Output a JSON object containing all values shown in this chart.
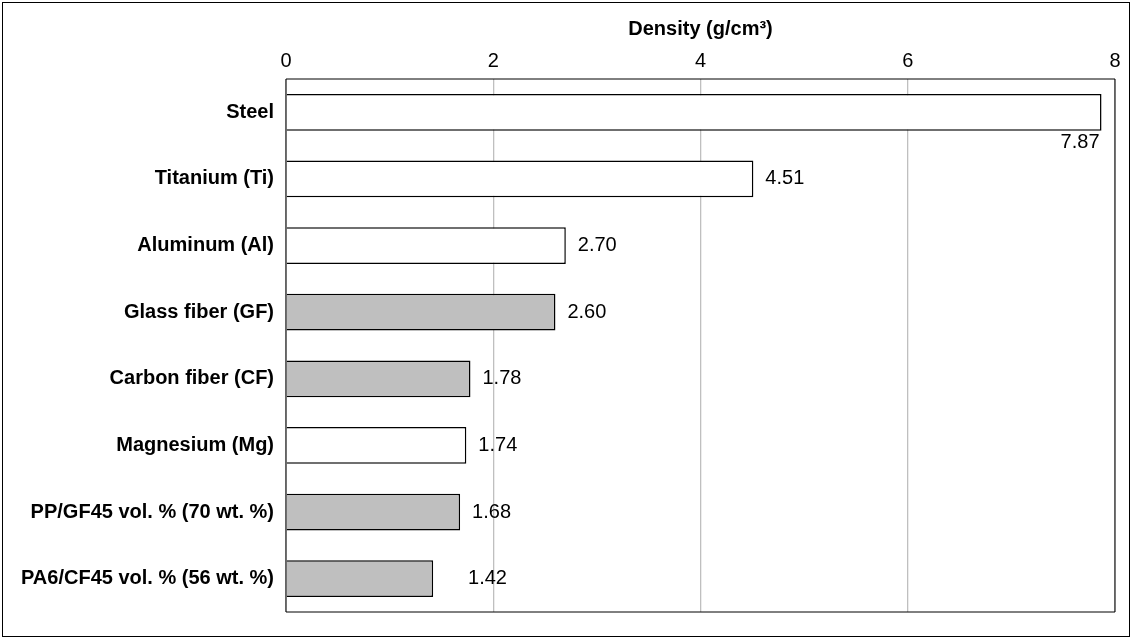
{
  "chart_data": {
    "type": "bar",
    "orientation": "horizontal",
    "xlabel": "Density (g/cm³)",
    "categories": [
      "Steel",
      "Titanium (Ti)",
      "Aluminum (Al)",
      "Glass fiber (GF)",
      "Carbon fiber (CF)",
      "Magnesium (Mg)",
      "PP/GF45 vol. % (70 wt. %)",
      "PA6/CF45 vol. % (56 wt. %)"
    ],
    "values": [
      7.87,
      4.51,
      2.7,
      2.6,
      1.78,
      1.74,
      1.68,
      1.42
    ],
    "colors": [
      "#ffffff",
      "#ffffff",
      "#ffffff",
      "#bfbfbf",
      "#bfbfbf",
      "#ffffff",
      "#bfbfbf",
      "#bfbfbf"
    ],
    "value_labels": [
      "7.87",
      "4.51",
      "2.70",
      "2.60",
      "1.78",
      "1.74",
      "1.68",
      "1.42"
    ],
    "xlim": [
      0,
      8
    ],
    "xticks": [
      0,
      2,
      4,
      6,
      8
    ],
    "grid": "x",
    "legend": false
  }
}
